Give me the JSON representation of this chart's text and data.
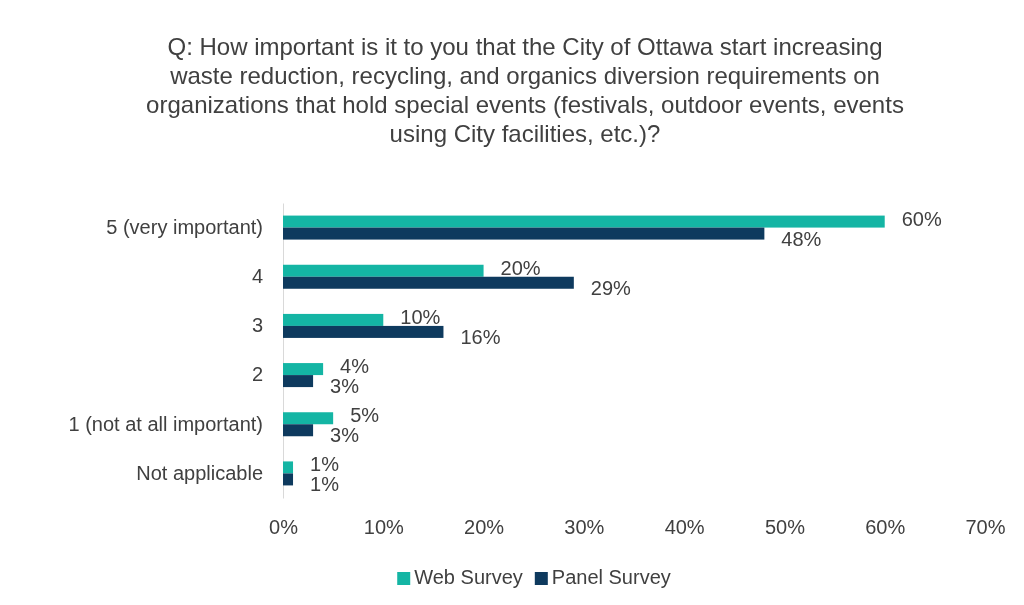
{
  "chart_data": {
    "type": "bar",
    "orientation": "horizontal",
    "title": "Q: How important is it to you that the City of Ottawa start increasing waste reduction, recycling, and organics diversion requirements on organizations that hold special events (festivals, outdoor events, events using City facilities, etc.)?",
    "categories": [
      "5 (very important)",
      "4",
      "3",
      "2",
      "1 (not at all important)",
      "Not applicable"
    ],
    "series": [
      {
        "name": "Web Survey",
        "color": "#14b5a4",
        "values": [
          60,
          20,
          10,
          4,
          5,
          1
        ],
        "value_labels": [
          "60%",
          "20%",
          "10%",
          "4%",
          "5%",
          "1%"
        ]
      },
      {
        "name": "Panel Survey",
        "color": "#0e3a5e",
        "values": [
          48,
          29,
          16,
          3,
          3,
          1
        ],
        "value_labels": [
          "48%",
          "29%",
          "16%",
          "3%",
          "3%",
          "1%"
        ]
      }
    ],
    "xlim": [
      0,
      70
    ],
    "xticks": [
      {
        "value": 0,
        "label": "0%"
      },
      {
        "value": 10,
        "label": "10%"
      },
      {
        "value": 20,
        "label": "20%"
      },
      {
        "value": 30,
        "label": "30%"
      },
      {
        "value": 40,
        "label": "40%"
      },
      {
        "value": 50,
        "label": "50%"
      },
      {
        "value": 60,
        "label": "60%"
      },
      {
        "value": 70,
        "label": "70%"
      }
    ],
    "grid": false,
    "legend": "bottom"
  }
}
